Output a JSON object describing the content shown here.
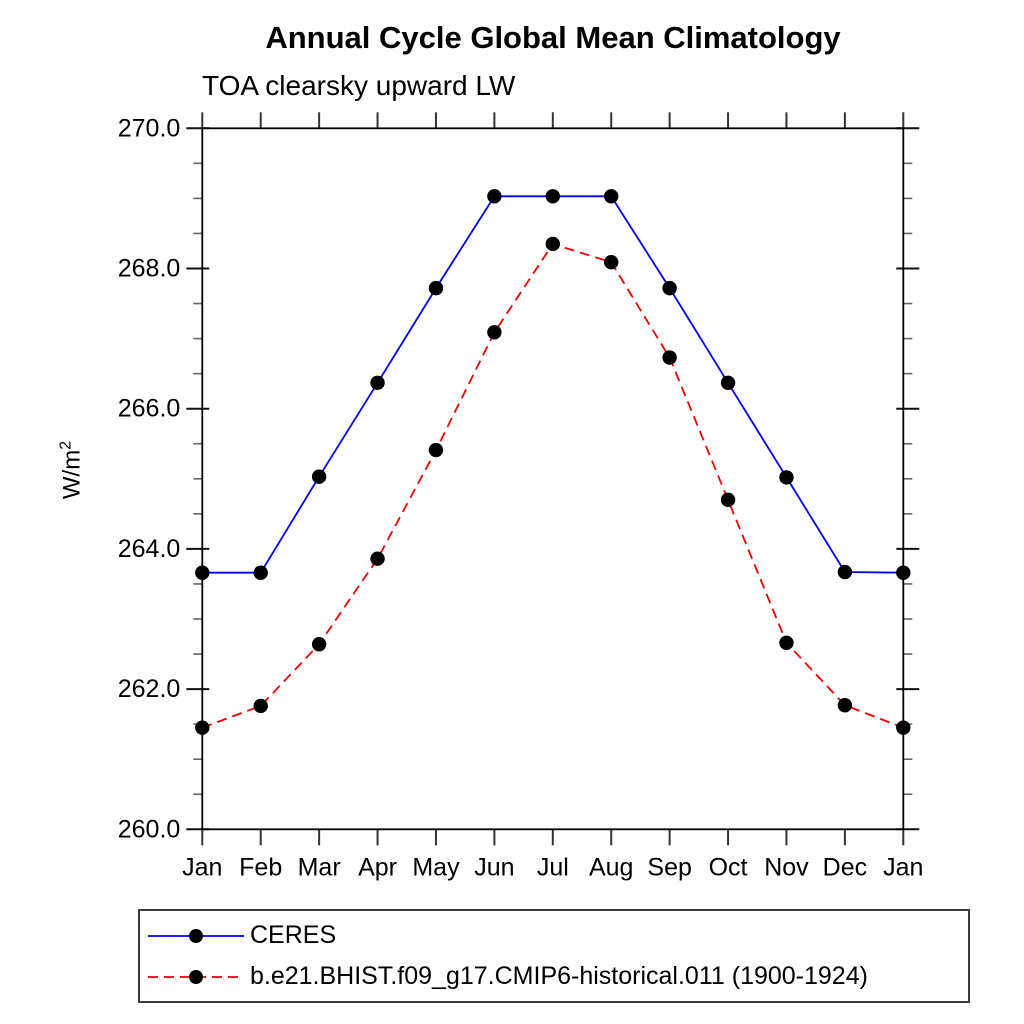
{
  "chart_data": {
    "type": "line",
    "title": "Annual Cycle Global Mean Climatology",
    "subtitle": "TOA clearsky upward LW",
    "ylabel_base": "W/m",
    "ylabel_sup": "2",
    "categories": [
      "Jan",
      "Feb",
      "Mar",
      "Apr",
      "May",
      "Jun",
      "Jul",
      "Aug",
      "Sep",
      "Oct",
      "Nov",
      "Dec",
      "Jan"
    ],
    "ylim": [
      260.0,
      270.0
    ],
    "ytick_major_interval": 2.0,
    "ytick_minor_interval": 0.5,
    "ytick_labels": [
      "260.0",
      "262.0",
      "264.0",
      "266.0",
      "268.0",
      "270.0"
    ],
    "grid": false,
    "legend_position": "bottom",
    "marker_color": "#000000",
    "series": [
      {
        "name": "CERES",
        "color": "#0000ee",
        "line_style": "solid",
        "marker": "filled-circle",
        "values": [
          263.66,
          263.66,
          265.03,
          266.37,
          267.72,
          269.03,
          269.03,
          269.03,
          267.72,
          266.37,
          265.02,
          263.67,
          263.66
        ]
      },
      {
        "name": "b.e21.BHIST.f09_g17.CMIP6-historical.011 (1900-1924)",
        "color": "#ee0000",
        "line_style": "dashed",
        "marker": "filled-circle",
        "values": [
          261.45,
          261.76,
          262.64,
          263.86,
          265.41,
          267.09,
          268.35,
          268.09,
          266.73,
          264.7,
          262.66,
          261.77,
          261.45
        ]
      }
    ]
  }
}
